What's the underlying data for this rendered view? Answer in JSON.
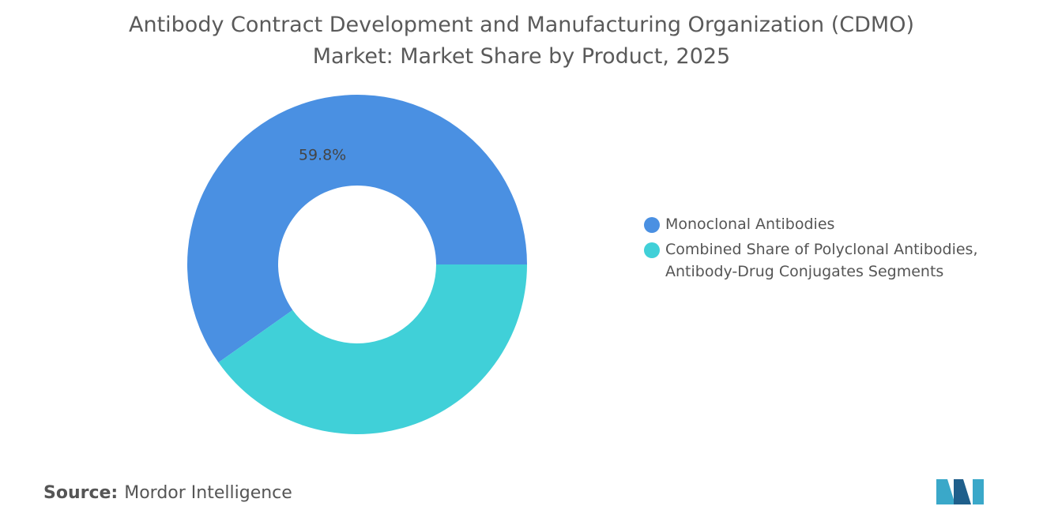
{
  "chart_data": {
    "type": "donut",
    "title": "Antibody Contract Development and Manufacturing Organization (CDMO) Market: Market Share by Product, 2025",
    "categories": [
      "Monoclonal Antibodies",
      "Combined Share of Polyclonal Antibodies, Antibody-Drug Conjugates Segments"
    ],
    "values": [
      59.8,
      40.2
    ],
    "value_labels": [
      "59.8%",
      null
    ],
    "colors": [
      "#4a90e2",
      "#40d0d8"
    ],
    "source_label": "Source:",
    "source": "Mordor Intelligence"
  }
}
